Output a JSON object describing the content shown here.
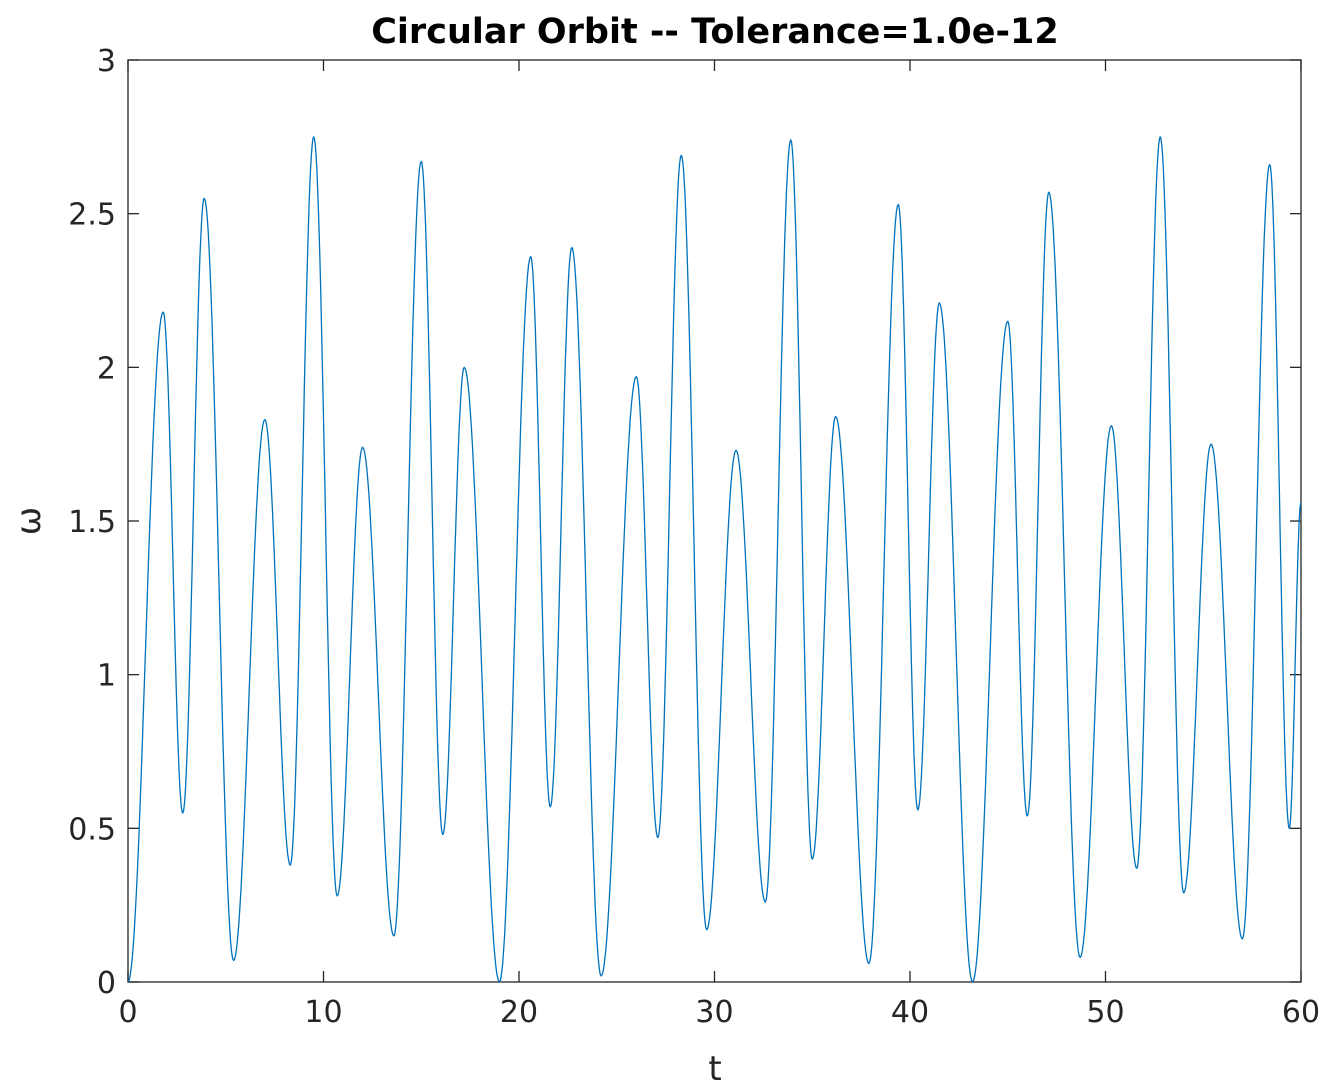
{
  "chart_data": {
    "type": "line",
    "title": "Circular Orbit -- Tolerance=1.0e-12",
    "xlabel": "t",
    "ylabel": "ω",
    "xlim": [
      0,
      60
    ],
    "ylim": [
      0,
      3
    ],
    "xticks": [
      0,
      10,
      20,
      30,
      40,
      50,
      60
    ],
    "yticks": [
      0,
      0.5,
      1,
      1.5,
      2,
      2.5,
      3
    ],
    "xtick_labels": [
      "0",
      "10",
      "20",
      "30",
      "40",
      "50",
      "60"
    ],
    "ytick_labels": [
      "0",
      "0.5",
      "1",
      "1.5",
      "2",
      "2.5",
      "3"
    ],
    "grid": false,
    "box": true,
    "series": [
      {
        "color": "#0072bd",
        "extrema_t": [
          0,
          1.8,
          2.8,
          3.9,
          5.4,
          7.0,
          8.3,
          9.5,
          10.7,
          12.0,
          13.6,
          15.0,
          16.1,
          17.2,
          19.0,
          20.6,
          21.6,
          22.7,
          24.2,
          26.0,
          27.1,
          28.3,
          29.6,
          31.1,
          32.6,
          33.9,
          35.0,
          36.2,
          37.9,
          39.4,
          40.4,
          41.5,
          43.2,
          45.0,
          46.0,
          47.1,
          48.7,
          50.3,
          51.6,
          52.8,
          54.0,
          55.4,
          57.0,
          58.4,
          59.4,
          60.0
        ],
        "extrema_omega": [
          0,
          2.18,
          0.55,
          2.55,
          0.07,
          1.83,
          0.38,
          2.75,
          0.28,
          1.74,
          0.15,
          2.67,
          0.48,
          2.0,
          0.0,
          2.36,
          0.57,
          2.39,
          0.02,
          1.97,
          0.47,
          2.69,
          0.17,
          1.73,
          0.26,
          2.74,
          0.4,
          1.84,
          0.06,
          2.53,
          0.56,
          2.21,
          0.0,
          2.15,
          0.54,
          2.57,
          0.08,
          1.81,
          0.37,
          2.75,
          0.29,
          1.75,
          0.14,
          2.66,
          0.5,
          1.56
        ]
      }
    ]
  },
  "colors": {
    "axes": "#262626",
    "line": "#0072bd",
    "title": "#000000",
    "background": "#ffffff"
  }
}
